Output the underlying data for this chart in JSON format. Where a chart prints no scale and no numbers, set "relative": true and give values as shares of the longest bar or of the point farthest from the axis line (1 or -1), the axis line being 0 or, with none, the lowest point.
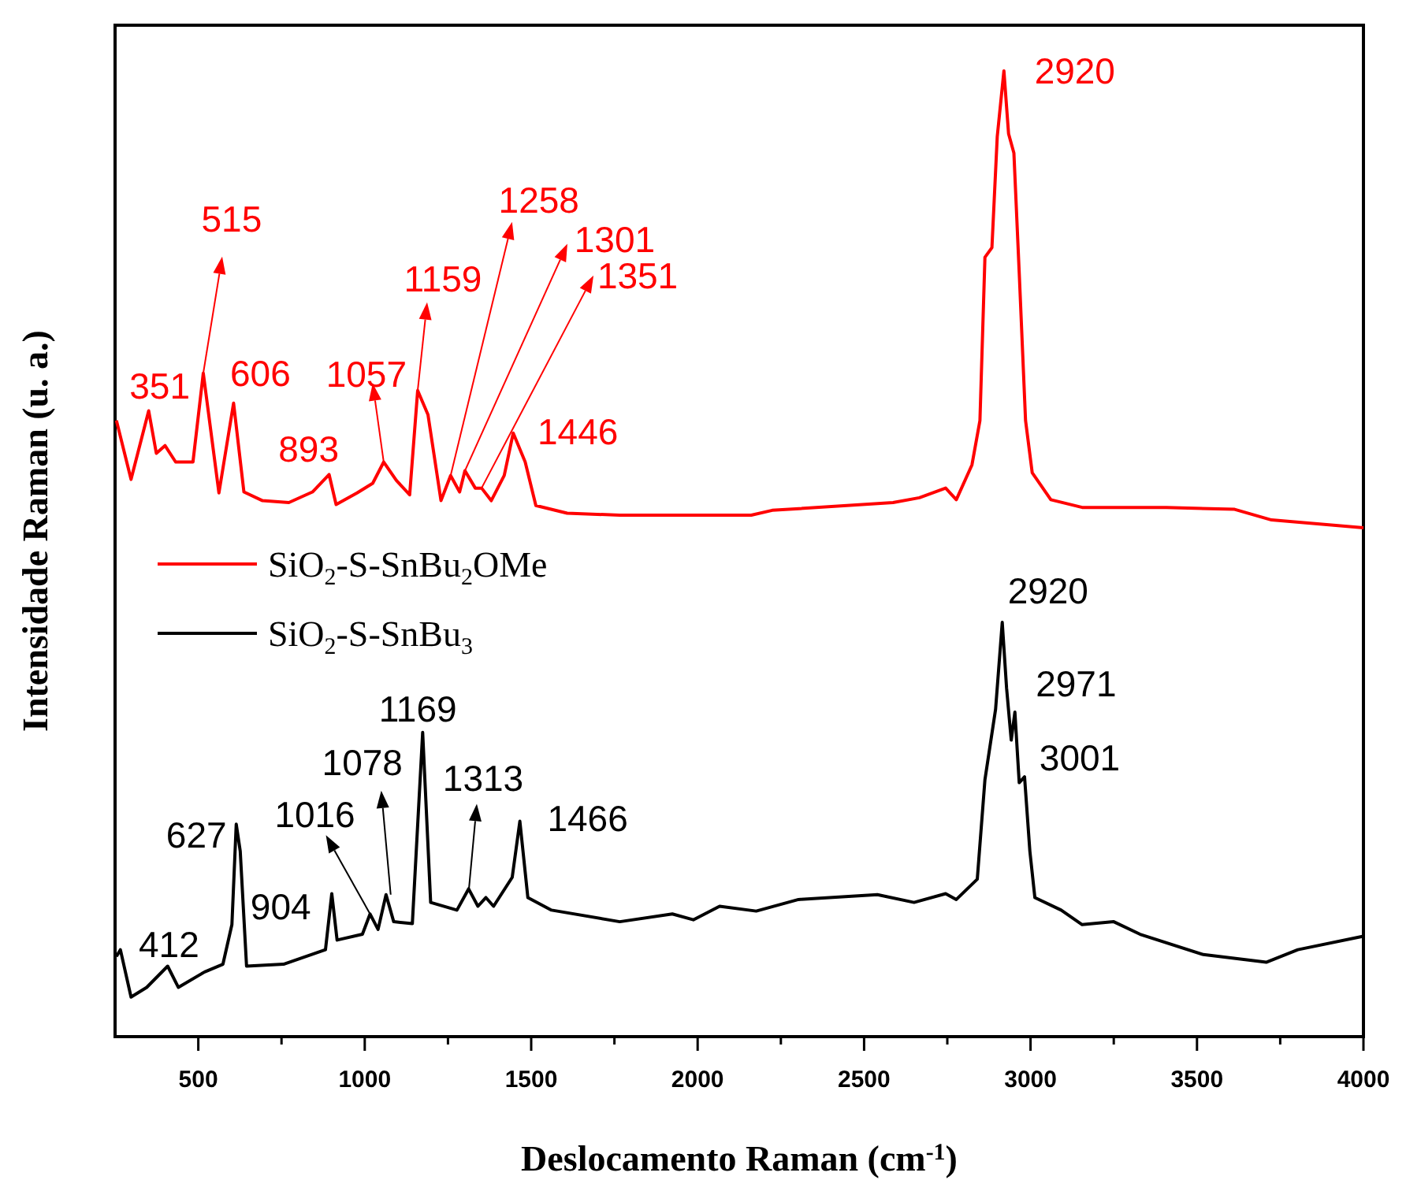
{
  "chart_data": {
    "type": "line",
    "xlabel": "Deslocamento Raman (cm$^{-1}$)",
    "ylabel": "Intensidade Raman (u. a.)",
    "relative": true,
    "xlim": [
      250,
      4000
    ],
    "xticks": [
      500,
      {
        "value": 750,
        "label": null
      },
      1000,
      {
        "value": 1250,
        "label": null
      },
      1500,
      {
        "value": 1750,
        "label": null
      },
      2000,
      {
        "value": 2250,
        "label": null
      },
      2500,
      {
        "value": 2750,
        "label": null
      },
      3000,
      {
        "value": 3250,
        "label": null
      },
      3500,
      {
        "value": 3750,
        "label": null
      },
      4000
    ],
    "tick_labels": "x",
    "legend": "left",
    "grid": false,
    "marker": "none",
    "line_style": "solid",
    "series": [
      {
        "name": "SiO$_{2}$-S-SnBu$_{2}$OMe",
        "color": "#ff0000",
        "x": [
          254,
          298,
          351,
          374,
          400,
          432,
          484,
          515,
          562,
          606,
          637,
          693,
          772,
          843,
          893,
          914,
          977,
          1024,
          1057,
          1095,
          1135,
          1159,
          1190,
          1229,
          1258,
          1285,
          1301,
          1332,
          1351,
          1380,
          1419,
          1446,
          1482,
          1514,
          1608,
          1766,
          2161,
          2224,
          2587,
          2666,
          2745,
          2777,
          2824,
          2848,
          2863,
          2884,
          2900,
          2920,
          2934,
          2950,
          2966,
          2985,
          3005,
          3061,
          3155,
          3408,
          3613,
          3724,
          4000
        ],
        "values": [
          0.638,
          0.577,
          0.648,
          0.604,
          0.612,
          0.595,
          0.595,
          0.687,
          0.563,
          0.656,
          0.564,
          0.555,
          0.553,
          0.564,
          0.582,
          0.551,
          0.563,
          0.573,
          0.595,
          0.576,
          0.561,
          0.669,
          0.644,
          0.555,
          0.581,
          0.564,
          0.586,
          0.568,
          0.568,
          0.555,
          0.581,
          0.625,
          0.595,
          0.55,
          0.542,
          0.54,
          0.54,
          0.545,
          0.553,
          0.558,
          0.568,
          0.556,
          0.592,
          0.638,
          0.807,
          0.817,
          0.932,
          1.0,
          0.935,
          0.915,
          0.791,
          0.638,
          0.584,
          0.556,
          0.548,
          0.548,
          0.546,
          0.535,
          0.527
        ]
      },
      {
        "name": "SiO$_{2}$-S-SnBu$_{3}$",
        "color": "#000000",
        "x": [
          254,
          266,
          298,
          345,
          408,
          440,
          519,
          574,
          601,
          614,
          626,
          645,
          756,
          882,
          901,
          917,
          993,
          1016,
          1040,
          1064,
          1087,
          1143,
          1174,
          1198,
          1277,
          1312,
          1340,
          1364,
          1387,
          1443,
          1466,
          1490,
          1561,
          1766,
          1924,
          1987,
          2066,
          2176,
          2303,
          2540,
          2650,
          2745,
          2777,
          2840,
          2863,
          2895,
          2915,
          2928,
          2942,
          2953,
          2966,
          2982,
          2998,
          3013,
          3092,
          3155,
          3250,
          3329,
          3519,
          3708,
          3803,
          4000
        ],
        "values": [
          0.083,
          0.09,
          0.041,
          0.051,
          0.073,
          0.051,
          0.067,
          0.075,
          0.116,
          0.22,
          0.192,
          0.073,
          0.075,
          0.09,
          0.148,
          0.1,
          0.106,
          0.127,
          0.111,
          0.147,
          0.119,
          0.117,
          0.315,
          0.139,
          0.131,
          0.153,
          0.135,
          0.144,
          0.135,
          0.165,
          0.223,
          0.144,
          0.131,
          0.119,
          0.127,
          0.121,
          0.135,
          0.13,
          0.142,
          0.147,
          0.139,
          0.148,
          0.142,
          0.163,
          0.266,
          0.339,
          0.429,
          0.361,
          0.307,
          0.336,
          0.263,
          0.269,
          0.192,
          0.144,
          0.131,
          0.116,
          0.119,
          0.106,
          0.085,
          0.077,
          0.09,
          0.104
        ]
      }
    ],
    "annotations": [
      {
        "text": "351",
        "x": 351,
        "y": 0.648
      },
      {
        "text": "515",
        "x": 515,
        "y": 0.687
      },
      {
        "text": "606",
        "x": 606,
        "y": 0.656
      },
      {
        "text": "893",
        "x": 893,
        "y": 0.582
      },
      {
        "text": "1057",
        "x": 1057,
        "y": 0.595
      },
      {
        "text": "1159",
        "x": 1159,
        "y": 0.669
      },
      {
        "text": "1258",
        "x": 1258,
        "y": 0.581
      },
      {
        "text": "1301",
        "x": 1301,
        "y": 0.586
      },
      {
        "text": "1351",
        "x": 1351,
        "y": 0.568
      },
      {
        "text": "1446",
        "x": 1446,
        "y": 0.625
      },
      {
        "text": "2920",
        "x": 2920,
        "y": 1.0
      },
      {
        "text": "412",
        "x": 412,
        "y": 0.073
      },
      {
        "text": "627",
        "x": 627,
        "y": 0.22
      },
      {
        "text": "904",
        "x": 904,
        "y": 0.148
      },
      {
        "text": "1016",
        "x": 1016,
        "y": 0.127
      },
      {
        "text": "1078",
        "x": 1078,
        "y": 0.147
      },
      {
        "text": "1169",
        "x": 1169,
        "y": 0.315
      },
      {
        "text": "1313",
        "x": 1313,
        "y": 0.153
      },
      {
        "text": "1466",
        "x": 1466,
        "y": 0.223
      },
      {
        "text": "2920",
        "x": 2920,
        "y": 0.429
      },
      {
        "text": "2971",
        "x": 2971,
        "y": 0.336
      },
      {
        "text": "3001",
        "x": 3001,
        "y": 0.269
      }
    ]
  }
}
